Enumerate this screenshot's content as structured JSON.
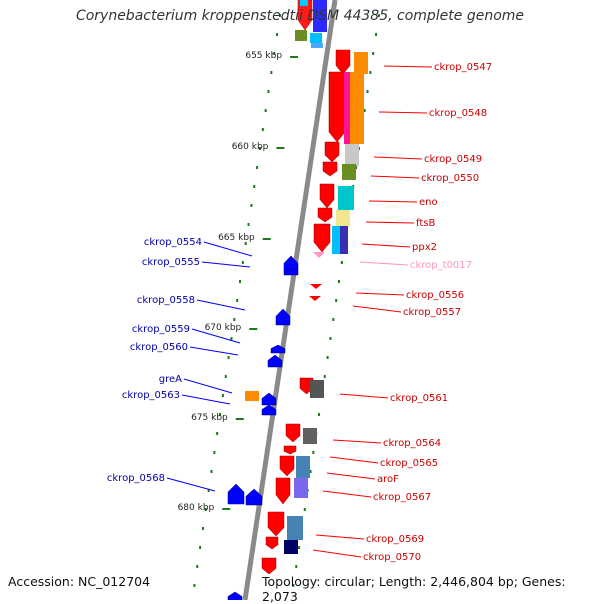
{
  "title": "Corynebacterium kroppenstedtii DSM 44385, complete genome",
  "accession": "Accession: NC_012704",
  "summary": "Topology: circular; Length: 2,446,804 bp; Genes: 2,073",
  "colors": {
    "backbone": "#8a8a8a",
    "tick": "#1e7a1e",
    "reverse_gene": "#ff0000",
    "forward_gene": "#1010ff",
    "reverse_label": "#cc0000",
    "forward_label": "#0000aa",
    "trna_label": "#ff99bb"
  },
  "scale_labels": [
    {
      "text": "655 kbp",
      "kbp": 655
    },
    {
      "text": "660 kbp",
      "kbp": 660
    },
    {
      "text": "665 kbp",
      "kbp": 665
    },
    {
      "text": "670 kbp",
      "kbp": 670
    },
    {
      "text": "675 kbp",
      "kbp": 675
    },
    {
      "text": "680 kbp",
      "kbp": 680
    }
  ],
  "genes": [
    {
      "label": "ckrop_0547",
      "strand": "-",
      "kind": "cds"
    },
    {
      "label": "ckrop_0548",
      "strand": "-",
      "kind": "cds"
    },
    {
      "label": "ckrop_0549",
      "strand": "-",
      "kind": "cds"
    },
    {
      "label": "ckrop_0550",
      "strand": "-",
      "kind": "cds"
    },
    {
      "label": "eno",
      "strand": "-",
      "kind": "cds"
    },
    {
      "label": "ftsB",
      "strand": "-",
      "kind": "cds"
    },
    {
      "label": "ppx2",
      "strand": "-",
      "kind": "cds"
    },
    {
      "label": "ckrop_t0017",
      "strand": "-",
      "kind": "trna"
    },
    {
      "label": "ckrop_0554",
      "strand": "+",
      "kind": "cds"
    },
    {
      "label": "ckrop_0555",
      "strand": "+",
      "kind": "cds"
    },
    {
      "label": "ckrop_0556",
      "strand": "-",
      "kind": "cds"
    },
    {
      "label": "ckrop_0557",
      "strand": "-",
      "kind": "cds"
    },
    {
      "label": "ckrop_0558",
      "strand": "+",
      "kind": "cds"
    },
    {
      "label": "ckrop_0559",
      "strand": "+",
      "kind": "cds"
    },
    {
      "label": "ckrop_0560",
      "strand": "+",
      "kind": "cds"
    },
    {
      "label": "greA",
      "strand": "+",
      "kind": "cds"
    },
    {
      "label": "ckrop_0563",
      "strand": "+",
      "kind": "cds"
    },
    {
      "label": "ckrop_0561",
      "strand": "-",
      "kind": "cds"
    },
    {
      "label": "ckrop_0564",
      "strand": "-",
      "kind": "cds"
    },
    {
      "label": "ckrop_0565",
      "strand": "-",
      "kind": "cds"
    },
    {
      "label": "aroF",
      "strand": "-",
      "kind": "cds"
    },
    {
      "label": "ckrop_0567",
      "strand": "-",
      "kind": "cds"
    },
    {
      "label": "ckrop_0568",
      "strand": "+",
      "kind": "cds"
    },
    {
      "label": "ckrop_0569",
      "strand": "-",
      "kind": "cds"
    },
    {
      "label": "ckrop_0570",
      "strand": "-",
      "kind": "cds"
    }
  ]
}
